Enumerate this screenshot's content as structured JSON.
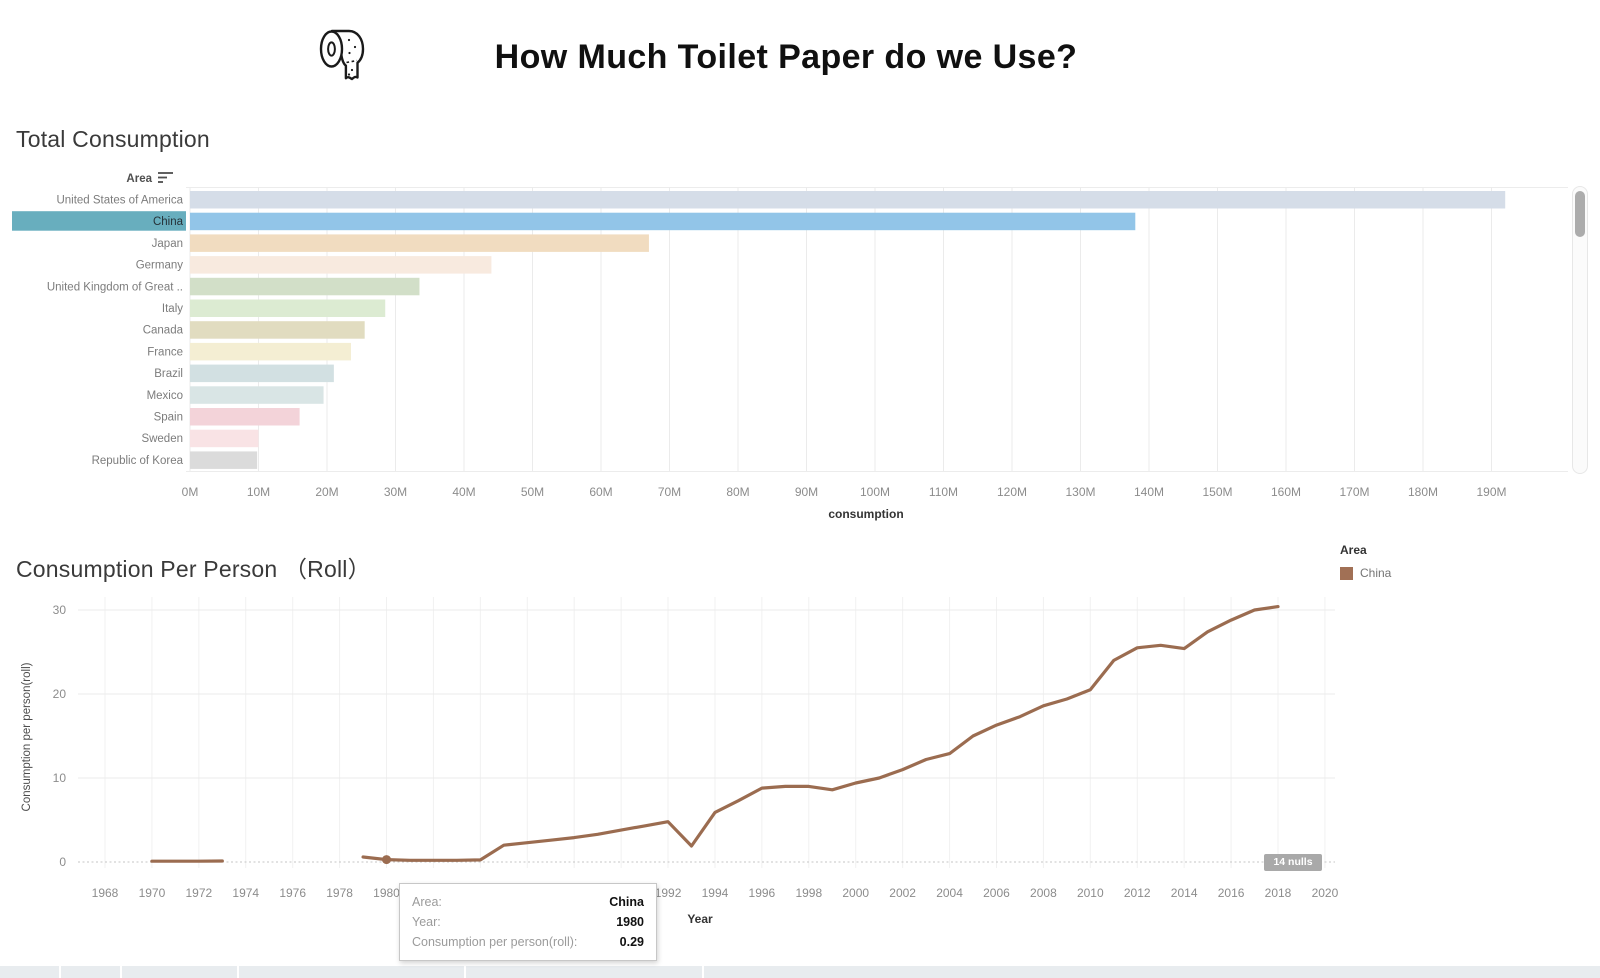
{
  "header": {
    "title": "How Much Toilet Paper do we Use?",
    "icon": "toilet-paper-roll"
  },
  "legend": {
    "title": "Area",
    "items": [
      {
        "label": "China",
        "color": "#9b6c50"
      }
    ]
  },
  "tooltip": {
    "rows": [
      {
        "label": "Area:",
        "value": "China"
      },
      {
        "label": "Year:",
        "value": "1980"
      },
      {
        "label": "Consumption per person(roll):",
        "value": "0.29"
      }
    ]
  },
  "nulls_badge": "14 nulls",
  "chart_data": [
    {
      "id": "total-consumption",
      "type": "bar",
      "orientation": "horizontal",
      "title": "Total Consumption",
      "column_header": "Area",
      "xlabel": "consumption",
      "unit": "M rolls",
      "xlim": [
        0,
        200
      ],
      "x_tick_values": [
        0,
        10,
        20,
        30,
        40,
        50,
        60,
        70,
        80,
        90,
        100,
        110,
        120,
        130,
        140,
        150,
        160,
        170,
        180,
        190
      ],
      "x_tick_labels": [
        "0M",
        "10M",
        "20M",
        "30M",
        "40M",
        "50M",
        "60M",
        "70M",
        "80M",
        "90M",
        "100M",
        "110M",
        "120M",
        "130M",
        "140M",
        "150M",
        "160M",
        "170M",
        "180M",
        "190M"
      ],
      "categories": [
        "United States of America",
        "China",
        "Japan",
        "Germany",
        "United Kingdom of Great ..",
        "Italy",
        "Canada",
        "France",
        "Brazil",
        "Mexico",
        "Spain",
        "Sweden",
        "Republic of Korea"
      ],
      "values": [
        192,
        138,
        67,
        44,
        33.5,
        28.5,
        25.5,
        23.5,
        21,
        19.5,
        16,
        10,
        9.8
      ],
      "bar_colors": [
        "#d5dde8",
        "#92c5e8",
        "#f1dcc0",
        "#f8eadf",
        "#d2dfc8",
        "#dcebd2",
        "#e1dcc0",
        "#f4eed3",
        "#d2e0e2",
        "#d9e5e5",
        "#f3d3d9",
        "#f9e3e5",
        "#dbdbdb"
      ],
      "highlight": {
        "category": "China",
        "label_bg": "#68aebe",
        "label_text": "#263238"
      },
      "grid": true,
      "legend_position": "none"
    },
    {
      "id": "consumption-per-person",
      "type": "line",
      "title": "Consumption Per Person （Roll）",
      "xlabel": "Year",
      "ylabel": "Consumption per person(roll)",
      "xlim": [
        1966.8,
        2021.5
      ],
      "ylim": [
        0,
        33
      ],
      "x_tick_values": [
        1968,
        1970,
        1972,
        1974,
        1976,
        1978,
        1980,
        1982,
        1984,
        1986,
        1988,
        1990,
        1992,
        1994,
        1996,
        1998,
        2000,
        2002,
        2004,
        2006,
        2008,
        2010,
        2012,
        2014,
        2016,
        2018,
        2020
      ],
      "y_tick_values": [
        0,
        10,
        20,
        30
      ],
      "grid": true,
      "zero_line": "dotted",
      "nulls_note": "14 nulls",
      "series": [
        {
          "name": "China",
          "color": "#9b6c50",
          "points": [
            [
              1970,
              0.1
            ],
            [
              1971,
              0.1
            ],
            [
              1972,
              0.1
            ],
            [
              1973,
              0.12
            ],
            null,
            [
              1979,
              0.6
            ],
            [
              1980,
              0.29
            ],
            [
              1981,
              0.2
            ],
            [
              1982,
              0.2
            ],
            [
              1983,
              0.2
            ],
            [
              1984,
              0.25
            ],
            [
              1985,
              2.0
            ],
            [
              1986,
              2.3
            ],
            [
              1987,
              2.6
            ],
            [
              1988,
              2.9
            ],
            [
              1989,
              3.3
            ],
            [
              1990,
              3.8
            ],
            [
              1991,
              4.3
            ],
            [
              1992,
              4.8
            ],
            [
              1993,
              1.9
            ],
            [
              1994,
              5.9
            ],
            [
              1995,
              7.3
            ],
            [
              1996,
              8.8
            ],
            [
              1997,
              9.0
            ],
            [
              1998,
              9.0
            ],
            [
              1999,
              8.6
            ],
            [
              2000,
              9.4
            ],
            [
              2001,
              10.0
            ],
            [
              2002,
              11.0
            ],
            [
              2003,
              12.2
            ],
            [
              2004,
              12.9
            ],
            [
              2005,
              15.0
            ],
            [
              2006,
              16.3
            ],
            [
              2007,
              17.3
            ],
            [
              2008,
              18.6
            ],
            [
              2009,
              19.4
            ],
            [
              2010,
              20.5
            ],
            [
              2011,
              24.0
            ],
            [
              2012,
              25.5
            ],
            [
              2013,
              25.8
            ],
            [
              2014,
              25.4
            ],
            [
              2015,
              27.4
            ],
            [
              2016,
              28.8
            ],
            [
              2017,
              30.0
            ],
            [
              2018,
              30.4
            ]
          ],
          "highlighted_point": {
            "x": 1980,
            "y": 0.29
          }
        }
      ],
      "legend_position": "right"
    }
  ]
}
